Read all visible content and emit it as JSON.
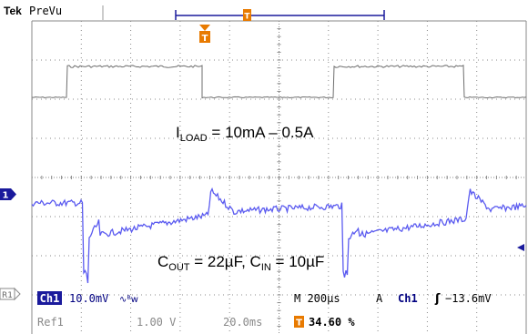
{
  "header": {
    "brand": "Tek",
    "mode": "PreVu",
    "trigger_marker": "T"
  },
  "annotations": {
    "load_symbol": "I",
    "load_subscript": "LOAD",
    "load_rest": " = 10mA – 0.5A",
    "cout_symbol": "C",
    "cout_subscript": "OUT",
    "cout_mid": " = 22µF, C",
    "cin_subscript": "IN",
    "cin_rest": " = 10µF"
  },
  "markers": {
    "ch1": "1",
    "ref1": "R1"
  },
  "readout": {
    "ch1_badge": "Ch1",
    "ch1_scale": "10.0mV",
    "coupling_icons": "∿ᴮw",
    "timebase": "M 200µs",
    "acq_mode": "A",
    "trigger_ch": "Ch1",
    "trigger_slope": "ʃ",
    "trigger_level": "−13.6mV",
    "ref1_label": "Ref1",
    "ref1_scale": "1.00 V",
    "ref1_time": "20.0ms",
    "trigger_badge": "T",
    "trigger_position": "34.60 %"
  },
  "colors": {
    "grid": "#8a8a8a",
    "trace_ch1": "#5b5bf0",
    "trace_load": "#6e6e6e",
    "badge_blue": "#1a1a9c",
    "trigger_orange": "#e87a00",
    "ref_text": "#888888",
    "readout_text": "#000080"
  }
}
